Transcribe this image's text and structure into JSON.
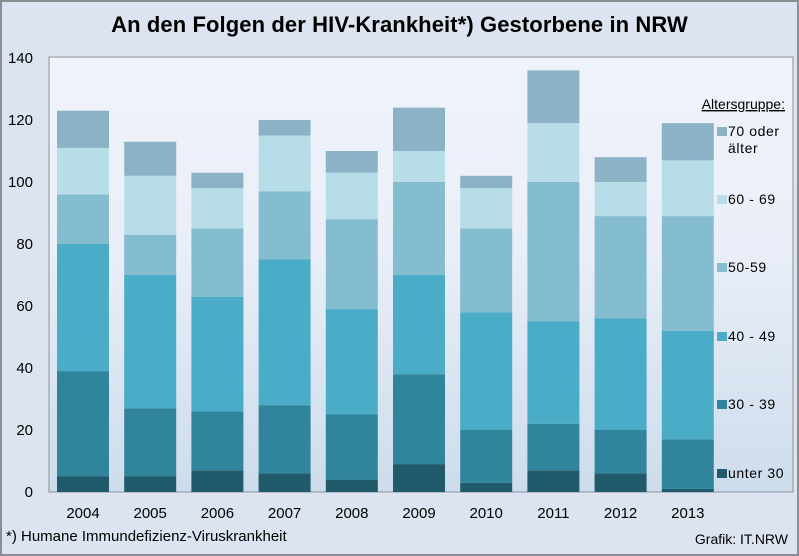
{
  "title": "An den Folgen der HIV-Krankheit*)  Gestorbene in NRW",
  "footnote": "*) Humane Immundefizienz-Viruskrankheit",
  "source": "Grafik: IT.NRW",
  "chart_data": {
    "type": "bar",
    "stacked": true,
    "title": "An den Folgen der HIV-Krankheit*)  Gestorbene in NRW",
    "xlabel": "",
    "ylabel": "",
    "ylim": [
      0,
      140
    ],
    "yticks": [
      0,
      20,
      40,
      60,
      80,
      100,
      120,
      140
    ],
    "grid": false,
    "categories": [
      "2004",
      "2005",
      "2006",
      "2007",
      "2008",
      "2009",
      "2010",
      "2011",
      "2012",
      "2013"
    ],
    "legend_title": "Altersgruppe:",
    "legend_position": "right",
    "series": [
      {
        "name": "unter 30",
        "color": "#215a6b",
        "values": [
          5,
          5,
          7,
          6,
          4,
          9,
          3,
          7,
          6,
          1
        ]
      },
      {
        "name": "30 - 39",
        "color": "#30849c",
        "values": [
          34,
          22,
          19,
          22,
          21,
          29,
          17,
          15,
          14,
          16
        ]
      },
      {
        "name": "40 - 49",
        "color": "#4aacc6",
        "values": [
          41,
          43,
          37,
          47,
          34,
          32,
          38,
          33,
          36,
          35
        ]
      },
      {
        "name": "50-59",
        "color": "#84bdd0",
        "values": [
          16,
          13,
          22,
          22,
          29,
          30,
          27,
          45,
          33,
          37
        ]
      },
      {
        "name": "60 - 69",
        "color": "#b7dde8",
        "values": [
          15,
          19,
          13,
          18,
          15,
          10,
          13,
          19,
          11,
          18
        ]
      },
      {
        "name": "70 oder älter",
        "color": "#8cb3c5",
        "values": [
          12,
          11,
          5,
          5,
          7,
          14,
          4,
          17,
          8,
          12
        ]
      }
    ]
  }
}
